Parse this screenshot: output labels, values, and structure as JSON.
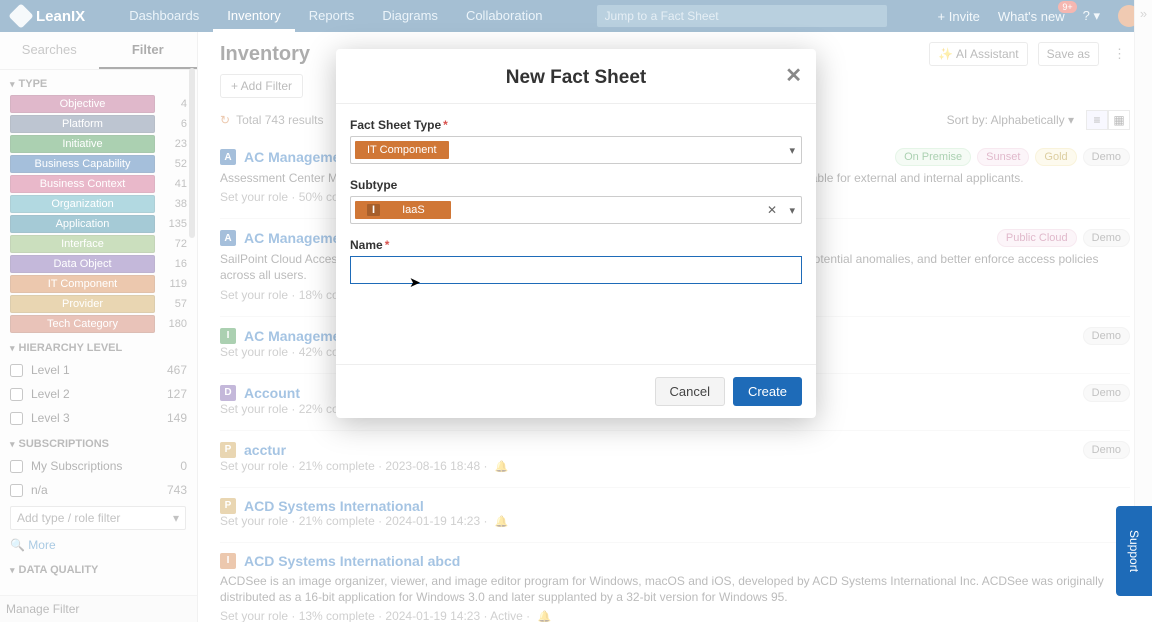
{
  "brand": "LeanIX",
  "topnav": [
    "Dashboards",
    "Inventory",
    "Reports",
    "Diagrams",
    "Collaboration"
  ],
  "topnav_active_index": 1,
  "search_placeholder": "Jump to a Fact Sheet",
  "top_right": {
    "invite": "+ Invite",
    "whats_new": "What's new",
    "notif_count": "9+"
  },
  "sidebar": {
    "tabs": [
      "Searches",
      "Filter"
    ],
    "active_tab": 1,
    "sections": {
      "type": {
        "title": "TYPE",
        "items": [
          {
            "label": "Objective",
            "count": 4,
            "color": "#b24f7d"
          },
          {
            "label": "Platform",
            "count": 6,
            "color": "#5a6e8c"
          },
          {
            "label": "Initiative",
            "count": 23,
            "color": "#2e8b3d"
          },
          {
            "label": "Business Capability",
            "count": 52,
            "color": "#1f5fa6"
          },
          {
            "label": "Business Context",
            "count": 41,
            "color": "#c94f7c"
          },
          {
            "label": "Organization",
            "count": 38,
            "color": "#3fa0b5"
          },
          {
            "label": "Application",
            "count": 135,
            "color": "#1f7a99"
          },
          {
            "label": "Interface",
            "count": 72,
            "color": "#7eaf5c"
          },
          {
            "label": "Data Object",
            "count": 16,
            "color": "#6b4fa3"
          },
          {
            "label": "IT Component",
            "count": 119,
            "color": "#d07736"
          },
          {
            "label": "Provider",
            "count": 57,
            "color": "#c79a3f"
          },
          {
            "label": "Tech Category",
            "count": 180,
            "color": "#c76a52"
          }
        ]
      },
      "hierarchy": {
        "title": "HIERARCHY LEVEL",
        "levels": [
          {
            "label": "Level 1",
            "count": 467
          },
          {
            "label": "Level 2",
            "count": 127
          },
          {
            "label": "Level 3",
            "count": 149
          }
        ]
      },
      "subscriptions": {
        "title": "SUBSCRIPTIONS",
        "items": [
          {
            "label": "My Subscriptions",
            "count": 0
          },
          {
            "label": "n/a",
            "count": 743
          }
        ],
        "add_placeholder": "Add type / role filter"
      },
      "more": "More",
      "data_quality": {
        "title": "DATA QUALITY"
      }
    },
    "manage_filter": "Manage Filter"
  },
  "page": {
    "title": "Inventory",
    "add_filter": "+ Add Filter",
    "ai_assistant": "AI Assistant",
    "save_as": "Save as",
    "results_text": "Total 743 results",
    "sort_label": "Sort by:",
    "sort_value": "Alphabetically"
  },
  "items": [
    {
      "badge": "A",
      "badge_color": "#1f5fa6",
      "title": "AC Management",
      "desc": "Assessment Center Management Solution supports the HR department in processing the application. This is usable for external and internal applicants.",
      "meta": "Set your role · 50% complete",
      "tags": [
        {
          "text": "On Premise",
          "bg": "#e5f6e7",
          "fg": "#2e8b3d",
          "border": "#bfe6c4"
        },
        {
          "text": "Sunset",
          "bg": "#f7e7ef",
          "fg": "#b24f7d",
          "border": "#ecc9da"
        },
        {
          "text": "Gold",
          "bg": "#fbf2d4",
          "fg": "#a88515",
          "border": "#f0e1a6"
        },
        {
          "text": "Demo",
          "bg": "#f0f0f0",
          "fg": "#666",
          "border": "#e0e0e0"
        }
      ]
    },
    {
      "badge": "A",
      "badge_color": "#1f5fa6",
      "title": "AC Management",
      "desc": "SailPoint Cloud Access Management helps identify access to, and track usage of, cloud infrastructures, detect potential anomalies, and better enforce access policies across all users.",
      "meta": "Set your role · 18% complete",
      "tags": [
        {
          "text": "Public Cloud",
          "bg": "#f7e7ef",
          "fg": "#b24f7d",
          "border": "#ecc9da"
        },
        {
          "text": "Demo",
          "bg": "#f0f0f0",
          "fg": "#666",
          "border": "#e0e0e0"
        }
      ]
    },
    {
      "badge": "I",
      "badge_color": "#2e8b3d",
      "title": "AC Management",
      "desc": "",
      "meta": "Set your role · 42% complete",
      "tags": [
        {
          "text": "Demo",
          "bg": "#f0f0f0",
          "fg": "#666",
          "border": "#e0e0e0"
        }
      ]
    },
    {
      "badge": "D",
      "badge_color": "#6b4fa3",
      "title": "Account",
      "desc": "",
      "meta": "Set your role · 22% complete",
      "tags": [
        {
          "text": "Demo",
          "bg": "#f0f0f0",
          "fg": "#666",
          "border": "#e0e0e0"
        }
      ]
    },
    {
      "badge": "P",
      "badge_color": "#c79a3f",
      "title": "acctur",
      "desc": "",
      "meta": "Set your role · 21% complete · 2023-08-16 18:48 · ",
      "bell": true,
      "tags": [
        {
          "text": "Demo",
          "bg": "#f0f0f0",
          "fg": "#666",
          "border": "#e0e0e0"
        }
      ]
    },
    {
      "badge": "P",
      "badge_color": "#c79a3f",
      "title": "ACD Systems International",
      "desc": "",
      "meta": "Set your role · 21% complete · 2024-01-19 14:23 · ",
      "bell": true,
      "tags": []
    },
    {
      "badge": "I",
      "badge_color": "#d07736",
      "title": "ACD Systems International abcd",
      "desc": "ACDSee is an image organizer, viewer, and image editor program for Windows, macOS and iOS, developed by ACD Systems International Inc. ACDSee was originally distributed as a 16-bit application for Windows 3.0 and later supplanted by a 32-bit version for Windows 95.",
      "meta": "Set your role · 13% complete · 2024-01-19 14:23 · Active · ",
      "bell": true,
      "tags": []
    }
  ],
  "modal": {
    "title": "New Fact Sheet",
    "labels": {
      "type": "Fact Sheet Type",
      "subtype": "Subtype",
      "name": "Name"
    },
    "type_chip": "IT Component",
    "type_chip_color": "#d07736",
    "subtype_chip": "IaaS",
    "subtype_prefix": "I",
    "name_value": "",
    "cancel": "Cancel",
    "create": "Create"
  },
  "support": "Support"
}
